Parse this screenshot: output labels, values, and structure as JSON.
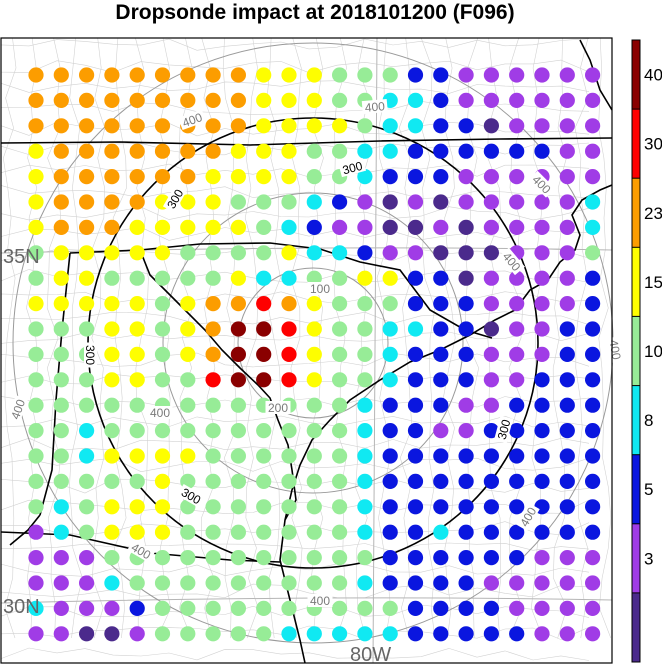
{
  "chart_data": {
    "type": "scatter",
    "title": "Dropsonde impact at 2018101200 (F096)",
    "map_labels": {
      "lat35": "35N",
      "lat30": "30N",
      "lon80": "80W"
    },
    "colorbar": {
      "ticks": [
        "3",
        "5",
        "8",
        "10",
        "15",
        "23",
        "30",
        "40"
      ],
      "colors": [
        "#4b2a8c",
        "#a03ce6",
        "#0a16df",
        "#10e9f2",
        "#97ec97",
        "#fefe00",
        "#fc9d00",
        "#fe0000",
        "#8a0000"
      ],
      "bounds": [
        0,
        3,
        5,
        8,
        10,
        15,
        23,
        30,
        40,
        50
      ]
    },
    "series": [
      {
        "name": "impact",
        "grid_values": [
          [
            23,
            23,
            27,
            27,
            27,
            27,
            27,
            23,
            23,
            20,
            15,
            15,
            12,
            12,
            12,
            7,
            7,
            4,
            4,
            4,
            4,
            4,
            4
          ],
          [
            23,
            23,
            23,
            23,
            23,
            23,
            23,
            27,
            23,
            20,
            15,
            15,
            12,
            12,
            9,
            9,
            6,
            4,
            4,
            4,
            4,
            4,
            4
          ],
          [
            27,
            27,
            27,
            27,
            27,
            27,
            27,
            27,
            23,
            20,
            15,
            15,
            15,
            12,
            9,
            9,
            6,
            6,
            2,
            4,
            4,
            4,
            4
          ],
          [
            20,
            27,
            27,
            27,
            27,
            27,
            23,
            23,
            20,
            20,
            15,
            12,
            12,
            9,
            9,
            6,
            6,
            6,
            6,
            6,
            6,
            4,
            4
          ],
          [
            20,
            27,
            27,
            27,
            27,
            27,
            23,
            20,
            20,
            20,
            15,
            12,
            12,
            9,
            6,
            6,
            6,
            4,
            4,
            4,
            4,
            4,
            4
          ],
          [
            20,
            23,
            23,
            23,
            23,
            20,
            20,
            20,
            12,
            12,
            12,
            9,
            6,
            4,
            2,
            4,
            2,
            4,
            4,
            4,
            4,
            4,
            9
          ],
          [
            20,
            23,
            23,
            23,
            20,
            20,
            20,
            20,
            20,
            12,
            9,
            6,
            4,
            4,
            2,
            2,
            4,
            2,
            4,
            4,
            4,
            4,
            9
          ],
          [
            12,
            20,
            20,
            20,
            20,
            20,
            12,
            12,
            12,
            12,
            15,
            9,
            9,
            6,
            4,
            4,
            2,
            2,
            2,
            4,
            4,
            4,
            12
          ],
          [
            12,
            20,
            20,
            12,
            12,
            12,
            12,
            12,
            15,
            9,
            9,
            12,
            12,
            20,
            15,
            6,
            6,
            2,
            4,
            4,
            4,
            4,
            6
          ],
          [
            20,
            20,
            20,
            20,
            20,
            12,
            20,
            27,
            27,
            35,
            27,
            20,
            12,
            12,
            12,
            6,
            6,
            6,
            4,
            4,
            4,
            4,
            6
          ],
          [
            12,
            12,
            12,
            20,
            20,
            12,
            20,
            27,
            45,
            45,
            35,
            20,
            12,
            12,
            9,
            9,
            6,
            6,
            2,
            4,
            4,
            6,
            6
          ],
          [
            12,
            12,
            12,
            20,
            20,
            12,
            20,
            27,
            45,
            45,
            35,
            20,
            12,
            12,
            9,
            6,
            6,
            6,
            4,
            4,
            4,
            6,
            6
          ],
          [
            12,
            12,
            12,
            20,
            20,
            12,
            12,
            35,
            45,
            45,
            35,
            20,
            12,
            12,
            9,
            6,
            6,
            6,
            4,
            4,
            6,
            6,
            6
          ],
          [
            12,
            12,
            12,
            12,
            12,
            12,
            12,
            12,
            12,
            12,
            12,
            12,
            12,
            9,
            6,
            6,
            6,
            4,
            4,
            6,
            6,
            6,
            6
          ],
          [
            12,
            12,
            9,
            12,
            12,
            12,
            12,
            12,
            12,
            12,
            12,
            12,
            12,
            9,
            6,
            6,
            4,
            4,
            6,
            6,
            6,
            6,
            6
          ],
          [
            12,
            12,
            9,
            20,
            20,
            20,
            20,
            12,
            12,
            12,
            12,
            12,
            12,
            9,
            6,
            6,
            6,
            6,
            6,
            6,
            6,
            6,
            6
          ],
          [
            12,
            12,
            12,
            12,
            12,
            20,
            12,
            12,
            12,
            12,
            12,
            12,
            12,
            9,
            6,
            6,
            6,
            6,
            6,
            6,
            6,
            6,
            6
          ],
          [
            12,
            9,
            12,
            20,
            20,
            20,
            12,
            12,
            12,
            12,
            12,
            12,
            12,
            9,
            6,
            6,
            6,
            6,
            6,
            6,
            6,
            6,
            6
          ],
          [
            4,
            9,
            12,
            20,
            20,
            20,
            12,
            12,
            12,
            12,
            12,
            12,
            12,
            9,
            6,
            6,
            9,
            6,
            6,
            6,
            6,
            6,
            6
          ],
          [
            4,
            4,
            4,
            12,
            12,
            12,
            12,
            12,
            12,
            12,
            12,
            12,
            12,
            12,
            6,
            6,
            6,
            6,
            6,
            6,
            4,
            4,
            4
          ],
          [
            4,
            4,
            4,
            9,
            12,
            12,
            12,
            12,
            12,
            12,
            12,
            12,
            12,
            9,
            6,
            6,
            6,
            6,
            4,
            4,
            4,
            4,
            4
          ],
          [
            9,
            4,
            4,
            4,
            6,
            12,
            12,
            12,
            12,
            12,
            12,
            12,
            12,
            12,
            12,
            6,
            6,
            6,
            6,
            4,
            4,
            4,
            4
          ],
          [
            4,
            4,
            2,
            2,
            4,
            12,
            12,
            12,
            12,
            12,
            9,
            9,
            9,
            9,
            9,
            6,
            6,
            6,
            6,
            6,
            4,
            4,
            4
          ]
        ]
      }
    ],
    "contours": {
      "black": [
        "300",
        "300",
        "300",
        "300",
        "300"
      ],
      "gray": [
        "100",
        "200",
        "400",
        "400",
        "400",
        "400",
        "400",
        "400",
        "400",
        "400",
        "400",
        "400"
      ]
    }
  }
}
